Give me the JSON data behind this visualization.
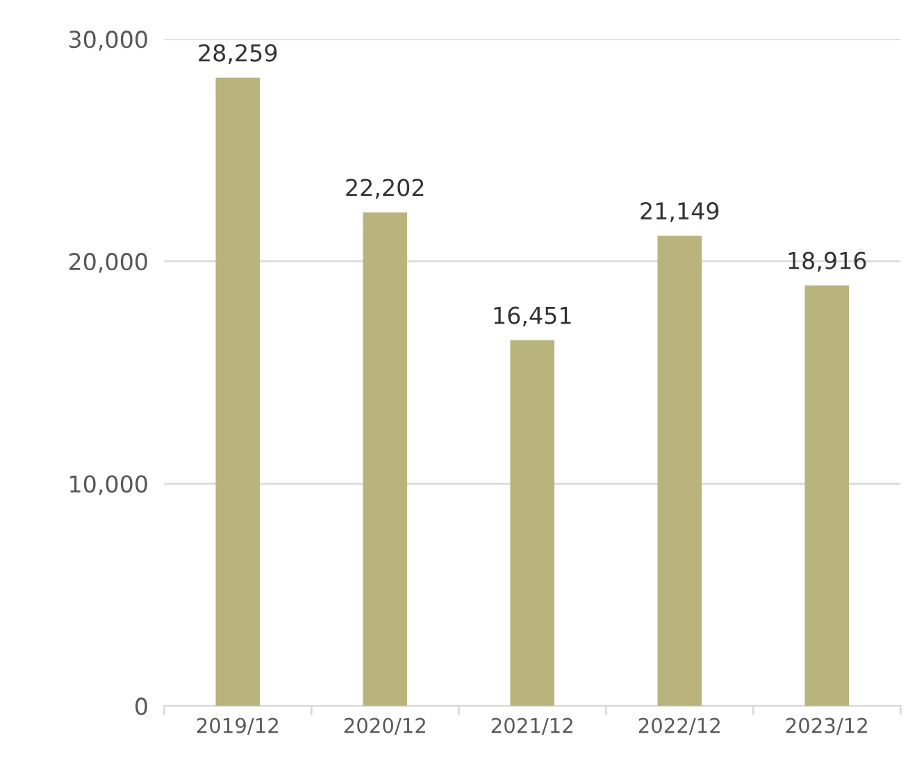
{
  "chart_data": {
    "type": "bar",
    "categories": [
      "2019/12",
      "2020/12",
      "2021/12",
      "2022/12",
      "2023/12"
    ],
    "values": [
      28259,
      22202,
      16451,
      21149,
      18916
    ],
    "color": "#b9b47c",
    "ylim": [
      0,
      30000
    ],
    "yticks": [
      {
        "value": 0,
        "label": "0"
      },
      {
        "value": 10000,
        "label": "10,000"
      },
      {
        "value": 20000,
        "label": "20,000"
      },
      {
        "value": 30000,
        "label": "30,000"
      }
    ],
    "value_labels": [
      "28,259",
      "22,202",
      "16,451",
      "21,149",
      "18,916"
    ],
    "grid": "y"
  }
}
